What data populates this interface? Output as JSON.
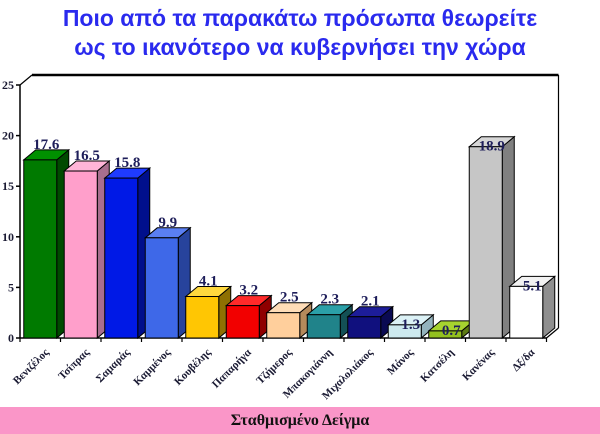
{
  "page": {
    "background": "#FFFFFF"
  },
  "title": {
    "line1": "Ποιο από τα παρακάτω πρόσωπα θεωρείτε",
    "line2": "ως το ικανότερο να κυβερνήσει την χώρα",
    "color": "#2A2AEE"
  },
  "footer": {
    "label": "Σταθμισμένο Δείγμα",
    "bg": "#FA96C8",
    "text_color": "#111111"
  },
  "chart_data": {
    "type": "bar",
    "projection": "3d",
    "title": "Ποιο από τα παρακάτω πρόσωπα θεωρείτε ως το ικανότερο να κυβερνήσει την χώρα",
    "categories": [
      "Βενιζέλος",
      "Τσίπρας",
      "Σαμαράς",
      "Καμμένος",
      "Κουβέλης",
      "Παπαρήγα",
      "Τζήμερος",
      "Μπακογιάννη",
      "Μιχαλολιάκος",
      "Μάνος",
      "Κατσέλη",
      "Κανένας",
      "Δξ/δα"
    ],
    "values": [
      17.6,
      16.5,
      15.8,
      9.9,
      4.1,
      3.2,
      2.5,
      2.3,
      2.1,
      1.3,
      0.7,
      18.9,
      5.1
    ],
    "value_labels": [
      "17.6",
      "16.5",
      "15.8",
      "9.9",
      "4.1",
      "3.2",
      "2.5",
      "2.3",
      "2.1",
      "1.3",
      "0.7",
      "18.9",
      "5.1"
    ],
    "label_overlaps_bar": [
      false,
      false,
      false,
      false,
      false,
      false,
      false,
      false,
      false,
      true,
      true,
      true,
      true
    ],
    "bar_colors_front": [
      "#007A00",
      "#FF9FCB",
      "#0019E6",
      "#3E68E8",
      "#FFC603",
      "#F20000",
      "#FFCF9C",
      "#20838A",
      "#10107E",
      "#CDE9EE",
      "#93C01F",
      "#C6C6C6",
      "#FFFFFF"
    ],
    "bar_colors_side": [
      "#004A00",
      "#A86E8E",
      "#000F8C",
      "#27439C",
      "#8E7002",
      "#8F0000",
      "#B58A5B",
      "#135055",
      "#0A0A52",
      "#93B3BD",
      "#5D7A13",
      "#808080",
      "#8F8F8F"
    ],
    "bar_colors_top": [
      "#009000",
      "#FFB5D8",
      "#1F3BFF",
      "#5A7FF2",
      "#FFD83E",
      "#FF2A2A",
      "#FFDDB7",
      "#2BA0A8",
      "#1D1D99",
      "#DCF2F6",
      "#A6D32F",
      "#D6D6D6",
      "#F2F2F2"
    ],
    "ylim": [
      0,
      25
    ],
    "yticks": [
      0,
      5,
      10,
      15,
      20,
      25
    ],
    "xlabel": "",
    "ylabel": "",
    "grid": false,
    "legend": false,
    "value_label_color": "#1E1E5A",
    "axis_text_color": "#1A1A33",
    "axis_line_color": "#000000"
  }
}
